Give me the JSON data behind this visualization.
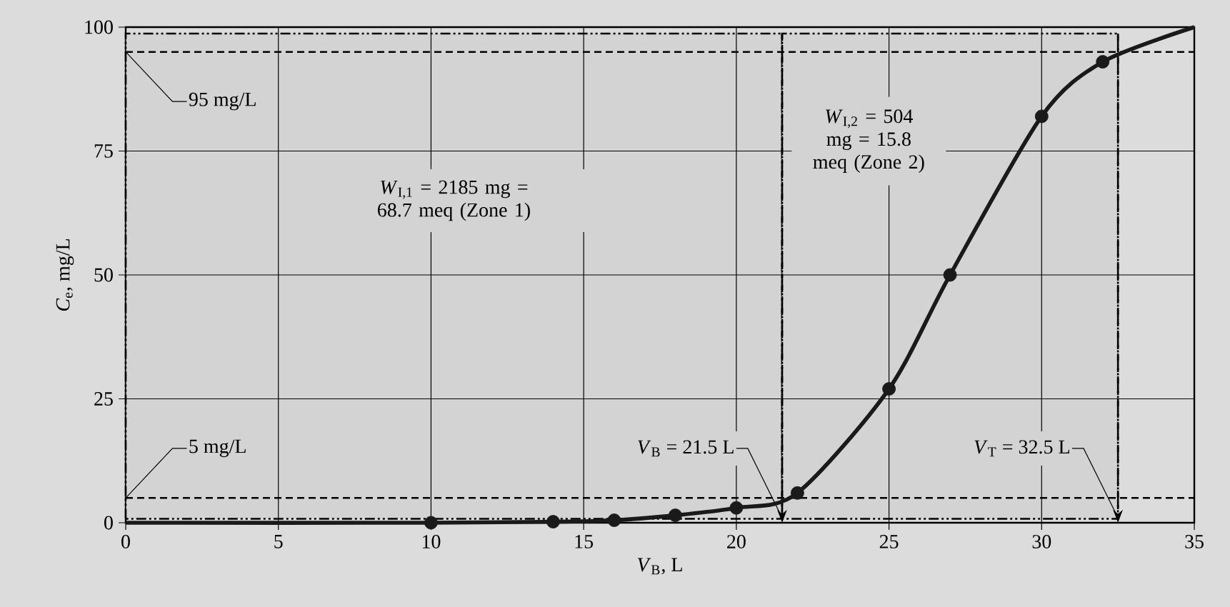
{
  "chart_data": {
    "type": "line",
    "xlabel": "*V*$_{B}$, L",
    "ylabel": "*C*$_{e}$, mg/L",
    "xlim": [
      0,
      35
    ],
    "ylim": [
      0,
      100
    ],
    "xticks": [
      0,
      5,
      10,
      15,
      20,
      25,
      30,
      35
    ],
    "yticks": [
      0,
      25,
      50,
      75,
      100
    ],
    "grid": true,
    "series": [
      {
        "color": "#1a1a1a",
        "marker": "none",
        "x": [
          0,
          10,
          14,
          16,
          18,
          20,
          22,
          25,
          27,
          30,
          32,
          35
        ],
        "values": [
          0,
          0,
          0.2,
          0.5,
          1.5,
          3,
          6,
          27,
          50,
          82,
          93,
          100
        ]
      },
      {
        "type": "scatter",
        "color": "#1a1a1a",
        "marker": "circle",
        "x": [
          10,
          14,
          16,
          18,
          20,
          22,
          25,
          27,
          30,
          32
        ],
        "values": [
          0,
          0.2,
          0.5,
          1.5,
          3,
          6,
          27,
          50,
          82,
          93
        ]
      }
    ],
    "ref_lines": [
      {
        "axis": "y",
        "value": 95,
        "label": "95 mg/L",
        "line_style": "dashed"
      },
      {
        "axis": "y",
        "value": 5,
        "label": "5 mg/L",
        "line_style": "dashed"
      },
      {
        "axis": "x",
        "value": 21.5,
        "label": "*V*$_{B}$ = 21.5 L",
        "line_style": "dashed"
      },
      {
        "axis": "x",
        "value": 32.5,
        "label": "*V*$_{T}$ = 32.5 L",
        "line_style": "dashed"
      }
    ],
    "bands": [
      {
        "axis": "x",
        "from": 0,
        "to": 21.5,
        "label": "*W*$_{I,1}$ = 2185 mg = 68.7 meq (Zone 1)",
        "color": "#d3d3d3"
      },
      {
        "axis": "x",
        "from": 21.5,
        "to": 32.5,
        "label": "*W*$_{I,2}$ = 504 mg = 15.8 meq (Zone 2)",
        "color": "#d3d3d3"
      }
    ]
  }
}
